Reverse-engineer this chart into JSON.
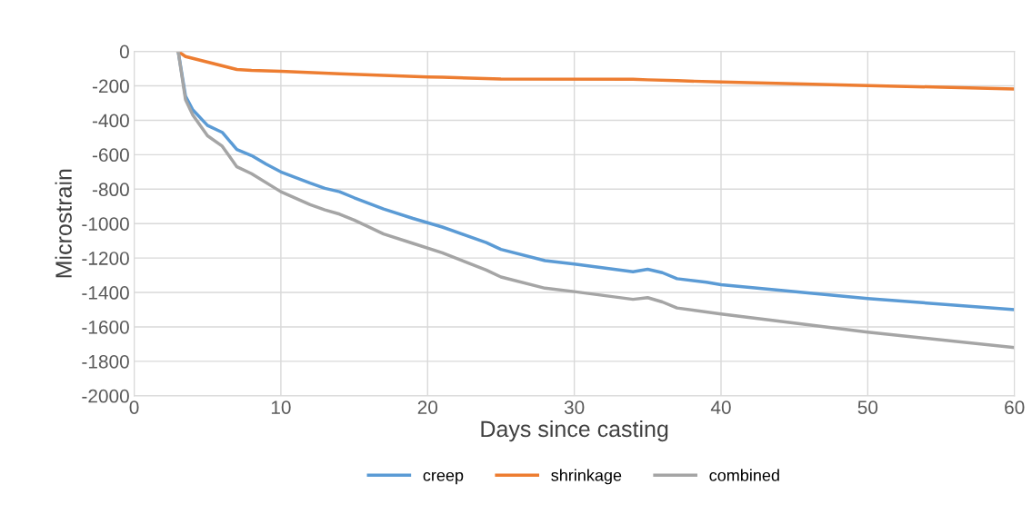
{
  "chart_data": {
    "type": "line",
    "xlabel": "Days since casting",
    "ylabel": "Microstrain",
    "xlim": [
      0,
      60
    ],
    "xticks": [
      0,
      10,
      20,
      30,
      40,
      50,
      60
    ],
    "ylim": [
      -2000,
      0
    ],
    "yticks": [
      -2000,
      -1800,
      -1600,
      -1400,
      -1200,
      -1000,
      -800,
      -600,
      -400,
      -200,
      0
    ],
    "grid": true,
    "legend": "bottom",
    "marker": "none",
    "line_style": "solid",
    "series": [
      {
        "name": "creep",
        "color": "#5b9bd5",
        "x": [
          3,
          3.5,
          4,
          5,
          6,
          7,
          8,
          9,
          10,
          12,
          13,
          14,
          15,
          17,
          19,
          21,
          24,
          25,
          28,
          30,
          34,
          35,
          36,
          37,
          39,
          40,
          50,
          60
        ],
        "values": [
          0,
          -260,
          -340,
          -430,
          -470,
          -570,
          -605,
          -655,
          -700,
          -765,
          -795,
          -815,
          -850,
          -915,
          -970,
          -1020,
          -1110,
          -1150,
          -1215,
          -1235,
          -1280,
          -1265,
          -1285,
          -1320,
          -1340,
          -1355,
          -1435,
          -1500
        ]
      },
      {
        "name": "shrinkage",
        "color": "#ed7d31",
        "x": [
          3,
          3.5,
          7,
          8,
          10,
          14,
          20,
          21,
          25,
          34,
          35,
          37,
          40,
          50,
          60
        ],
        "values": [
          0,
          -30,
          -105,
          -110,
          -115,
          -130,
          -148,
          -150,
          -160,
          -162,
          -165,
          -170,
          -178,
          -198,
          -218
        ]
      },
      {
        "name": "combined",
        "color": "#a5a5a5",
        "x": [
          3,
          3.5,
          4,
          5,
          6,
          7,
          8,
          10,
          12,
          13,
          14,
          15,
          17,
          19,
          21,
          24,
          25,
          28,
          30,
          34,
          35,
          36,
          37,
          40,
          50,
          60
        ],
        "values": [
          0,
          -280,
          -370,
          -490,
          -550,
          -670,
          -710,
          -815,
          -890,
          -920,
          -945,
          -980,
          -1060,
          -1115,
          -1170,
          -1270,
          -1310,
          -1375,
          -1395,
          -1440,
          -1430,
          -1455,
          -1490,
          -1525,
          -1630,
          -1720
        ]
      }
    ]
  }
}
